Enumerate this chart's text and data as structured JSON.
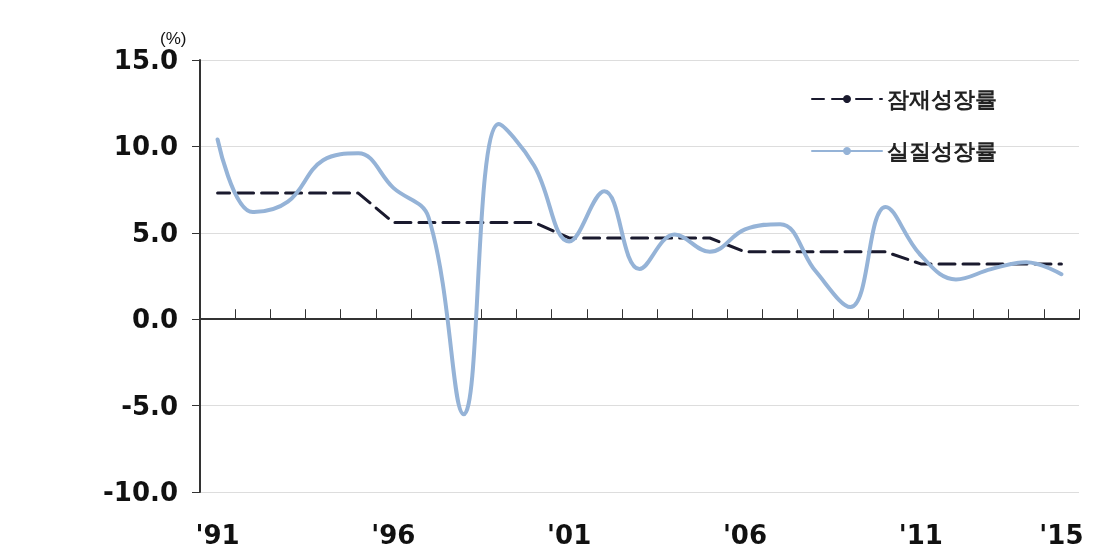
{
  "chart_data": {
    "type": "line",
    "ylabel": "(%)",
    "categories": [
      "'91",
      null,
      null,
      null,
      null,
      "'96",
      null,
      null,
      null,
      null,
      "'01",
      null,
      null,
      null,
      null,
      "'06",
      null,
      null,
      null,
      null,
      "'11",
      null,
      null,
      null,
      "'15"
    ],
    "series": [
      {
        "name": "잠재성장률",
        "color": "#1a1a2e",
        "line_style": "dashed",
        "values": [
          7.3,
          7.3,
          7.3,
          7.3,
          7.3,
          5.6,
          5.6,
          5.6,
          5.6,
          5.6,
          4.7,
          4.7,
          4.7,
          4.7,
          4.7,
          3.9,
          3.9,
          3.9,
          3.9,
          3.9,
          3.2,
          3.2,
          3.2,
          3.2,
          3.2
        ]
      },
      {
        "name": "실질성장률",
        "color": "#95b3d7",
        "line_style": "solid",
        "values": [
          10.4,
          6.2,
          6.8,
          9.2,
          9.6,
          7.6,
          5.9,
          -5.5,
          11.3,
          8.9,
          4.5,
          7.4,
          2.9,
          4.9,
          3.9,
          5.2,
          5.5,
          2.8,
          0.7,
          6.5,
          3.7,
          2.3,
          2.9,
          3.3,
          2.6
        ]
      }
    ],
    "ylim": [
      -10,
      15
    ],
    "yticks": [
      {
        "value": -10,
        "label": "-10.0"
      },
      {
        "value": -5,
        "label": "-5.0"
      },
      {
        "value": 0,
        "label": "0.0"
      },
      {
        "value": 5,
        "label": "5.0"
      },
      {
        "value": 10,
        "label": "10.0"
      },
      {
        "value": 15,
        "label": "15.0"
      }
    ],
    "grid": "y",
    "legend": "top right",
    "marker": "none"
  }
}
